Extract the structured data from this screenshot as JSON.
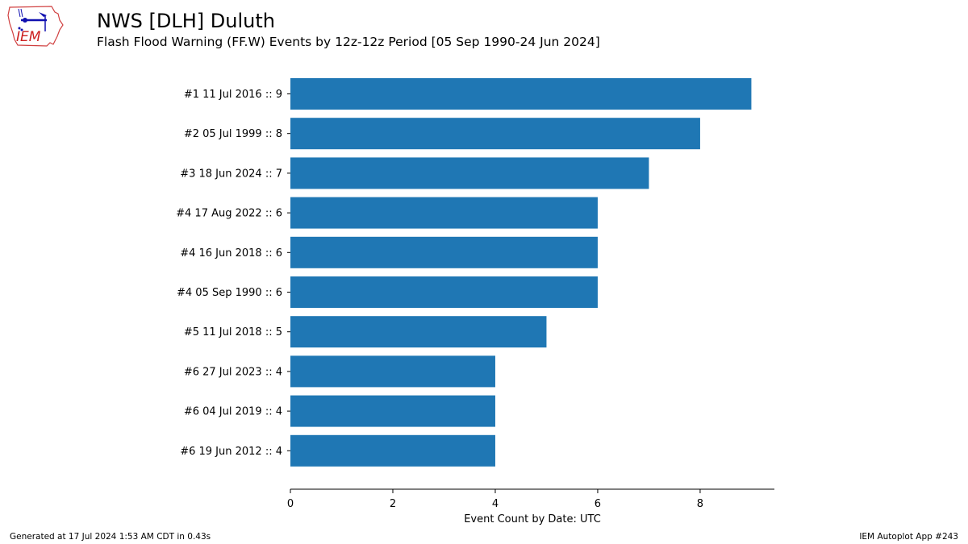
{
  "header": {
    "logo_text": "IEM",
    "title": "NWS [DLH] Duluth",
    "subtitle": "Flash Flood Warning (FF.W) Events by 12z-12z Period [05 Sep 1990-24 Jun 2024]"
  },
  "chart_data": {
    "type": "bar",
    "orientation": "horizontal",
    "categories": [
      "#1  11 Jul 2016 :: 9",
      "#2  05 Jul 1999 :: 8",
      "#3  18 Jun 2024 :: 7",
      "#4  17 Aug 2022 :: 6",
      "#4  16 Jun 2018 :: 6",
      "#4  05 Sep 1990 :: 6",
      "#5  11 Jul 2018 :: 5",
      "#6  27 Jul 2023 :: 4",
      "#6  04 Jul 2019 :: 4",
      "#6  19 Jun 2012 :: 4"
    ],
    "values": [
      9,
      8,
      7,
      6,
      6,
      6,
      5,
      4,
      4,
      4
    ],
    "xlabel": "Event Count by Date: UTC",
    "xlim": [
      0,
      9.45
    ],
    "xticks": [
      0,
      2,
      4,
      6,
      8
    ],
    "bar_color": "#1f77b4",
    "grid": false
  },
  "footer": {
    "generated": "Generated at 17 Jul 2024 1:53 AM CDT in 0.43s",
    "app": "IEM Autoplot App #243"
  }
}
